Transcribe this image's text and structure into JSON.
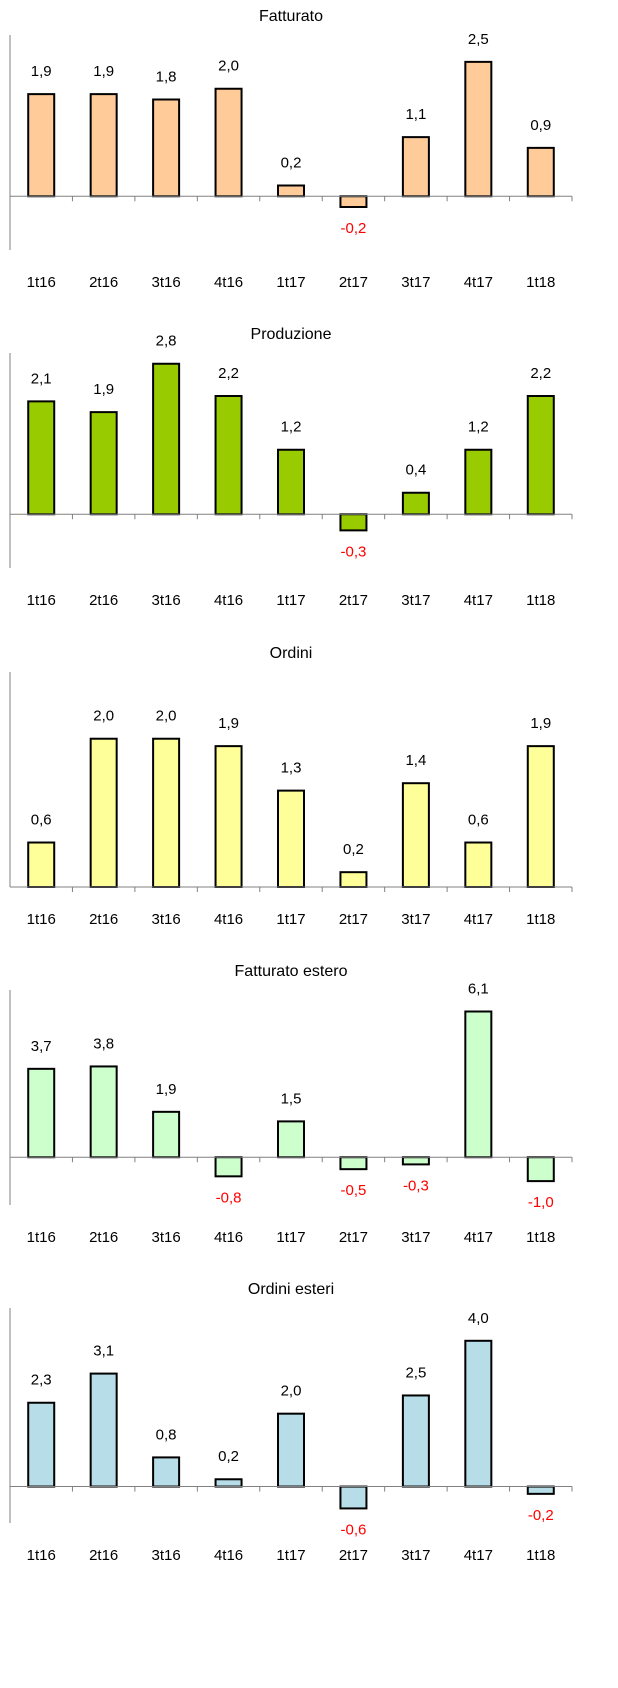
{
  "chart_data": [
    {
      "type": "bar",
      "title": "Fatturato",
      "categories": [
        "1t16",
        "2t16",
        "3t16",
        "4t16",
        "1t17",
        "2t17",
        "3t17",
        "4t17",
        "1t18"
      ],
      "values": [
        1.9,
        1.9,
        1.8,
        2.0,
        0.2,
        -0.2,
        1.1,
        2.5,
        0.9
      ],
      "value_labels": [
        "1,9",
        "1,9",
        "1,8",
        "2,0",
        "0,2",
        "-0,2",
        "1,1",
        "2,5",
        "0,9"
      ],
      "color": "#ffcc99",
      "negative_label_color": "#ff0000",
      "ylim": [
        -1,
        3
      ]
    },
    {
      "type": "bar",
      "title": "Produzione",
      "categories": [
        "1t16",
        "2t16",
        "3t16",
        "4t16",
        "1t17",
        "2t17",
        "3t17",
        "4t17",
        "1t18"
      ],
      "values": [
        2.1,
        1.9,
        2.8,
        2.2,
        1.2,
        -0.3,
        0.4,
        1.2,
        2.2
      ],
      "value_labels": [
        "2,1",
        "1,9",
        "2,8",
        "2,2",
        "1,2",
        "-0,3",
        "0,4",
        "1,2",
        "2,2"
      ],
      "color": "#99cc00",
      "negative_label_color": "#ff0000",
      "ylim": [
        -1,
        3
      ]
    },
    {
      "type": "bar",
      "title": "Ordini",
      "categories": [
        "1t16",
        "2t16",
        "3t16",
        "4t16",
        "1t17",
        "2t17",
        "3t17",
        "4t17",
        "1t18"
      ],
      "values": [
        0.6,
        2.0,
        2.0,
        1.9,
        1.3,
        0.2,
        1.4,
        0.6,
        1.9
      ],
      "value_labels": [
        "0,6",
        "2,0",
        "2,0",
        "1,9",
        "1,3",
        "0,2",
        "1,4",
        "0,6",
        "1,9"
      ],
      "color": "#ffff99",
      "negative_label_color": "#ff0000",
      "ylim": [
        0,
        2.9
      ]
    },
    {
      "type": "bar",
      "title": "Fatturato estero",
      "categories": [
        "1t16",
        "2t16",
        "3t16",
        "4t16",
        "1t17",
        "2t17",
        "3t17",
        "4t17",
        "1t18"
      ],
      "values": [
        3.7,
        3.8,
        1.9,
        -0.8,
        1.5,
        -0.5,
        -0.3,
        6.1,
        -1.0
      ],
      "value_labels": [
        "3,7",
        "3,8",
        "1,9",
        "-0,8",
        "1,5",
        "-0,5",
        "-0,3",
        "6,1",
        "-1,0"
      ],
      "color": "#ccffcc",
      "negative_label_color": "#ff0000",
      "ylim": [
        -2,
        7
      ]
    },
    {
      "type": "bar",
      "title": "Ordini esteri",
      "categories": [
        "1t16",
        "2t16",
        "3t16",
        "4t16",
        "1t17",
        "2t17",
        "3t17",
        "4t17",
        "1t18"
      ],
      "values": [
        2.3,
        3.1,
        0.8,
        0.2,
        2.0,
        -0.6,
        2.5,
        4.0,
        -0.2
      ],
      "value_labels": [
        "2,3",
        "3,1",
        "0,8",
        "0,2",
        "2,0",
        "-0,6",
        "2,5",
        "4,0",
        "-0,2"
      ],
      "color": "#b7dde8",
      "negative_label_color": "#ff0000",
      "ylim": [
        -1,
        4.9
      ]
    }
  ]
}
